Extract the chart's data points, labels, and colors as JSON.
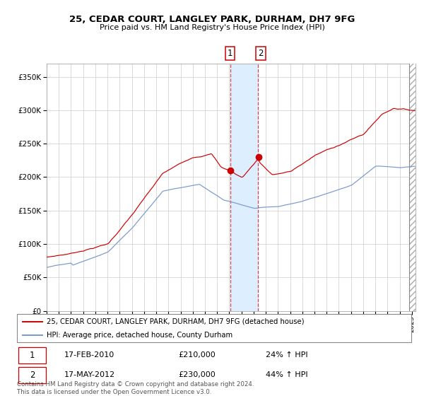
{
  "title": "25, CEDAR COURT, LANGLEY PARK, DURHAM, DH7 9FG",
  "subtitle": "Price paid vs. HM Land Registry's House Price Index (HPI)",
  "legend_line1": "25, CEDAR COURT, LANGLEY PARK, DURHAM, DH7 9FG (detached house)",
  "legend_line2": "HPI: Average price, detached house, County Durham",
  "annotation1_date": "17-FEB-2010",
  "annotation1_price": "£210,000",
  "annotation1_hpi": "24% ↑ HPI",
  "annotation2_date": "17-MAY-2012",
  "annotation2_price": "£230,000",
  "annotation2_hpi": "44% ↑ HPI",
  "footnote": "Contains HM Land Registry data © Crown copyright and database right 2024.\nThis data is licensed under the Open Government Licence v3.0.",
  "sale1_year": 2010.12,
  "sale2_year": 2012.38,
  "sale1_value": 210000,
  "sale2_value": 230000,
  "red_color": "#cc0000",
  "blue_color": "#7799cc",
  "shade_color": "#ddeeff",
  "grid_color": "#cccccc",
  "ylim": [
    0,
    370000
  ],
  "xlim_start": 1995,
  "xlim_end": 2025.3
}
